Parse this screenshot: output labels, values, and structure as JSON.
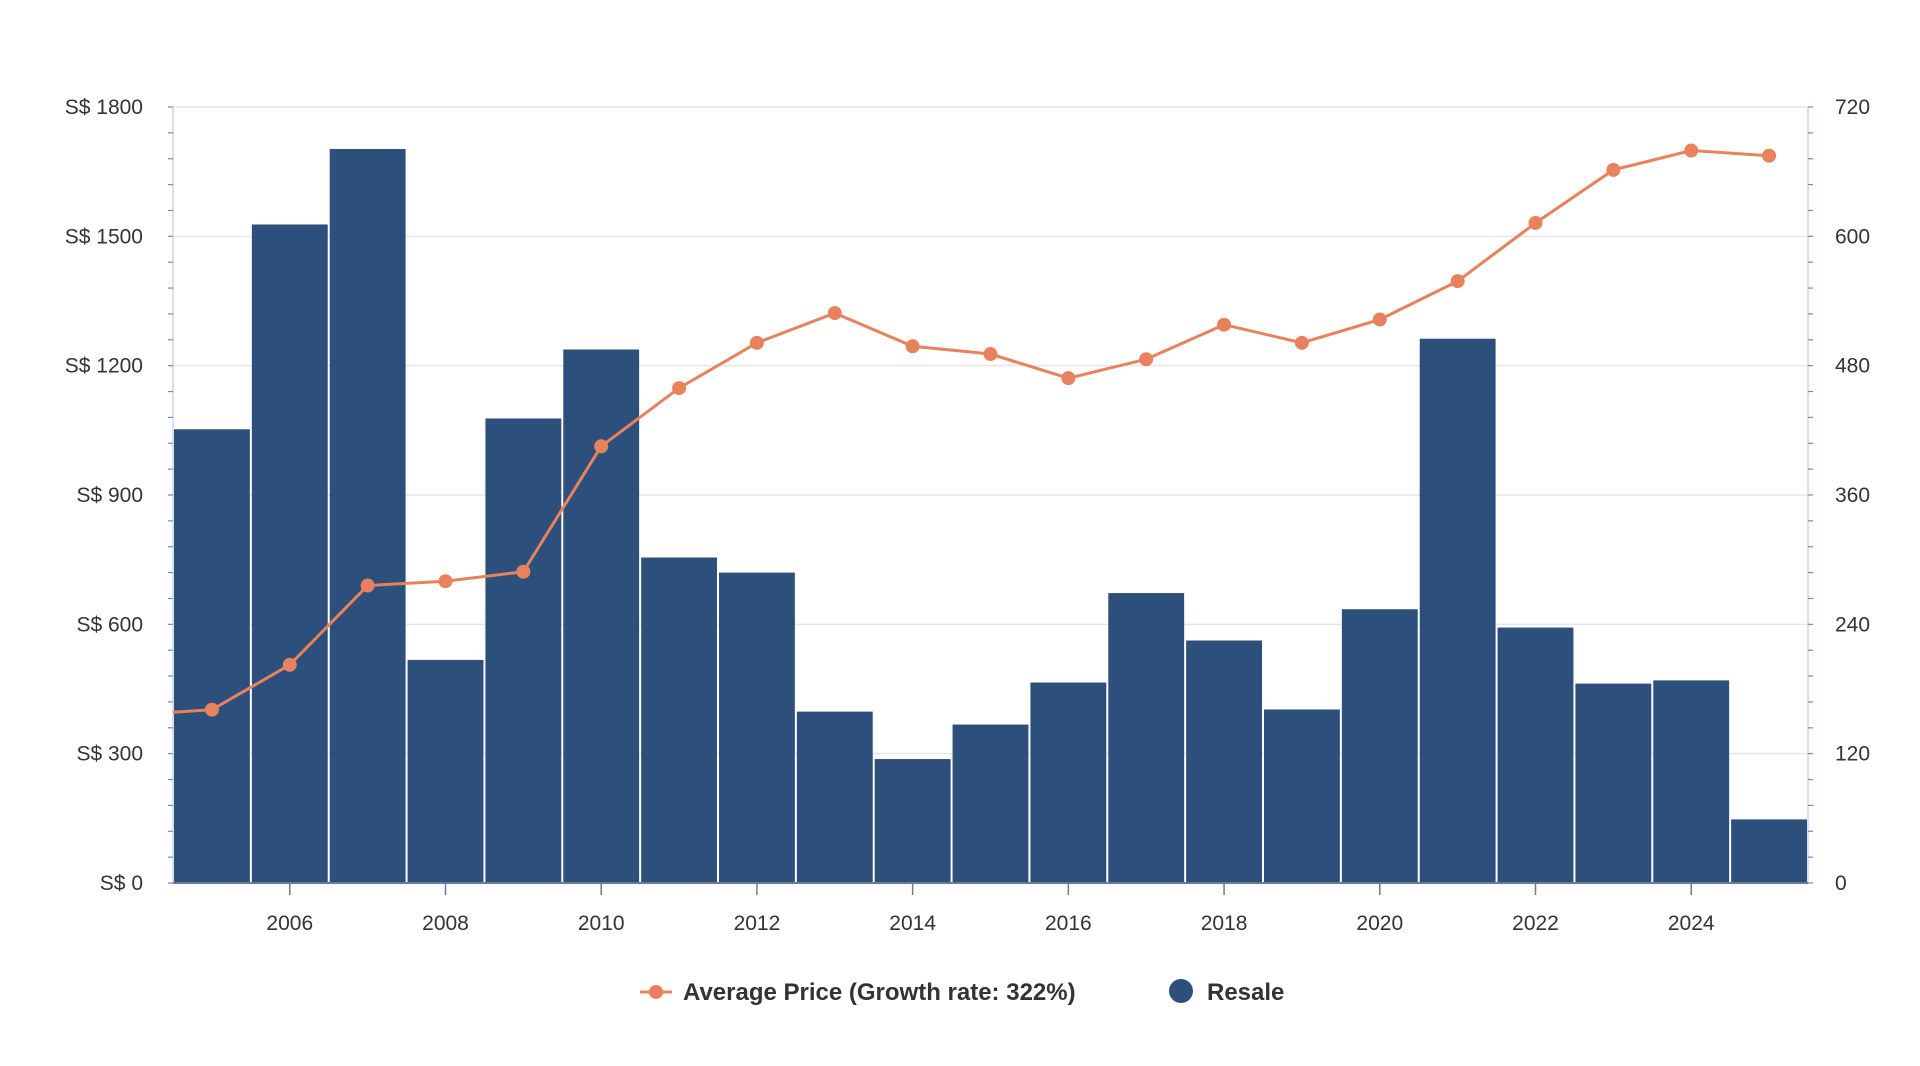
{
  "chart_data": {
    "type": "bar+line",
    "x": [
      2005,
      2006,
      2007,
      2008,
      2009,
      2010,
      2011,
      2012,
      2013,
      2014,
      2015,
      2016,
      2017,
      2018,
      2019,
      2020,
      2021,
      2022,
      2023,
      2024,
      2025
    ],
    "series": [
      {
        "name": "Resale",
        "type": "bar",
        "axis": "right",
        "color": "#2c4f7c",
        "values": [
          421,
          611,
          681,
          207,
          431,
          495,
          302,
          288,
          159,
          115,
          147,
          186,
          269,
          225,
          161,
          254,
          505,
          237,
          185,
          188,
          59
        ]
      },
      {
        "name": "Average Price (Growth rate: 322%)",
        "type": "line",
        "axis": "left",
        "color": "#e8825d",
        "values": [
          402,
          506,
          690,
          700,
          722,
          1013,
          1148,
          1253,
          1322,
          1245,
          1227,
          1171,
          1215,
          1295,
          1253,
          1307,
          1396,
          1531,
          1654,
          1699,
          1687
        ],
        "line_start_value": 396
      }
    ],
    "left_axis": {
      "ticks": [
        "S$ 0",
        "S$ 300",
        "S$ 600",
        "S$ 900",
        "S$ 1200",
        "S$ 1500",
        "S$ 1800"
      ],
      "range": [
        0,
        1800
      ]
    },
    "right_axis": {
      "ticks": [
        "0",
        "120",
        "240",
        "360",
        "480",
        "600",
        "720"
      ],
      "range": [
        0,
        720
      ]
    },
    "x_ticks": [
      "2006",
      "2008",
      "2010",
      "2012",
      "2014",
      "2016",
      "2018",
      "2020",
      "2022",
      "2024"
    ],
    "legend": [
      {
        "label": "Average Price (Growth rate: 322%)",
        "icon": "line-marker-icon",
        "color": "#e8825d"
      },
      {
        "label": "Resale",
        "icon": "circle-icon",
        "color": "#2c4f7c"
      }
    ],
    "legend_position": "bottom-center",
    "grid": true
  }
}
